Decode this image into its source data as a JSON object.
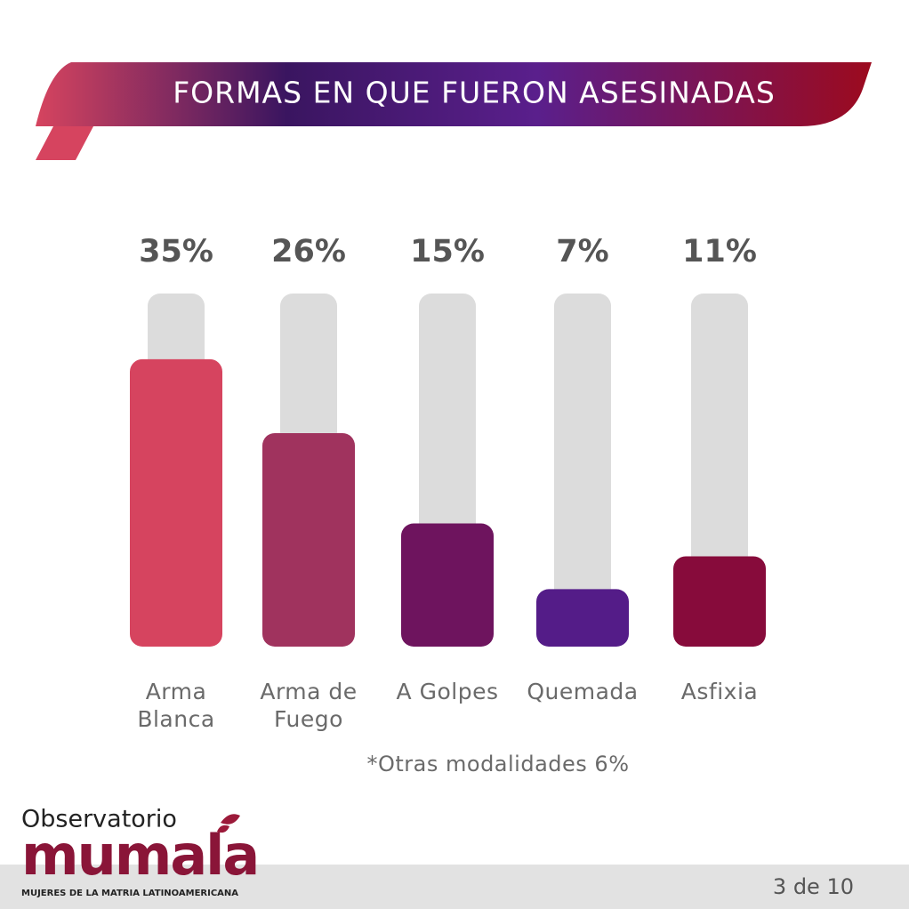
{
  "chart_data": {
    "type": "bar",
    "title": "FORMAS EN QUE FUERON ASESINADAS",
    "categories": [
      "Arma\nBlanca",
      "Arma de\nFuego",
      "A Golpes",
      "Quemada",
      "Asfixia"
    ],
    "values": [
      35,
      26,
      15,
      7,
      11
    ],
    "value_labels": [
      "35%",
      "26%",
      "15%",
      "7%",
      "11%"
    ],
    "colors": [
      "#d6445f",
      "#a0335e",
      "#6e145e",
      "#541c88",
      "#870b3b"
    ],
    "track_color": "#dcdcdc",
    "ylim": [
      0,
      43
    ],
    "note": "*Otras modalidades 6%"
  },
  "footer": {
    "logo_top": "Observatorio",
    "logo_main": "mumala",
    "logo_sub": "MUJERES DE LA MATRIA LATINOAMERICANA",
    "page": "3 de 10"
  }
}
